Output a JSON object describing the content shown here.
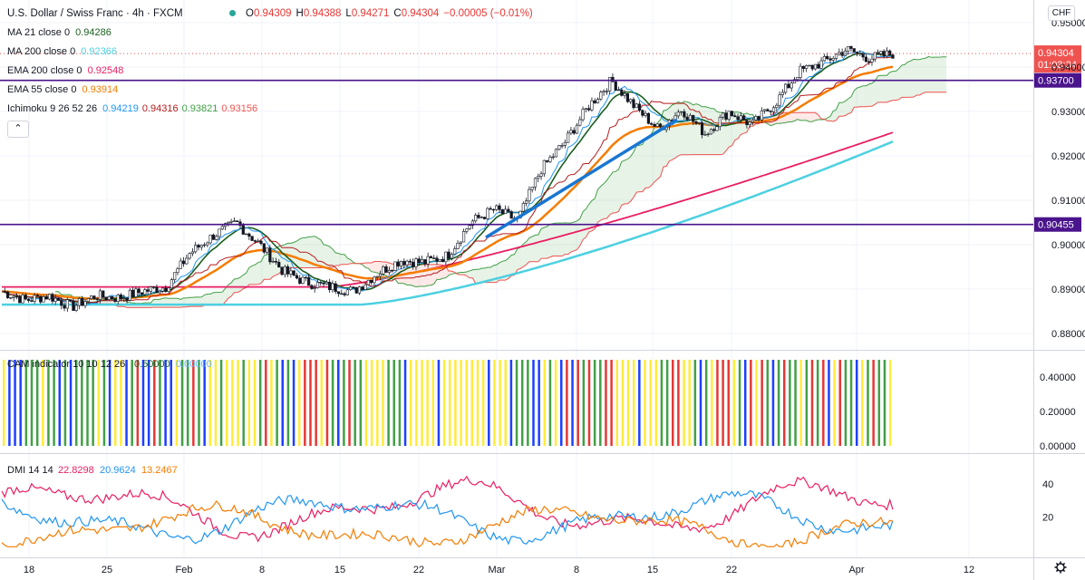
{
  "header": {
    "symbol": "U.S. Dollar / Swiss Franc · 4h · FXCM",
    "ohlc": [
      {
        "k": "O",
        "v": "0.94309"
      },
      {
        "k": "H",
        "v": "0.94388"
      },
      {
        "k": "L",
        "v": "0.94271"
      },
      {
        "k": "C",
        "v": "0.94304"
      }
    ],
    "change": "−0.00005 (−0.01%)",
    "currency_button": "CHF",
    "collapse_icon": "chevron-up-icon"
  },
  "indicators": [
    {
      "label": "MA 21 close 0",
      "values": [
        "0.94286"
      ],
      "colors": [
        "#1b5e20"
      ]
    },
    {
      "label": "MA 200 close 0",
      "values": [
        "0.92366"
      ],
      "colors": [
        "#4dd0e1"
      ]
    },
    {
      "label": "EMA 200 close 0",
      "values": [
        "0.92548"
      ],
      "colors": [
        "#e91e63"
      ]
    },
    {
      "label": "EMA 55 close 0",
      "values": [
        "0.93914"
      ],
      "colors": [
        "#f57c00"
      ]
    },
    {
      "label": "Ichimoku 9 26 52 26",
      "values": [
        "0.94219",
        "0.94316",
        "0.93821",
        "0.93156"
      ],
      "colors": [
        "#2196f3",
        "#b71c1c",
        "#43a047",
        "#ef5350"
      ]
    }
  ],
  "price_axis": {
    "labels": [
      "0.95000",
      "0.94000",
      "0.93000",
      "0.92000",
      "0.91000",
      "0.90000",
      "0.89000",
      "0.88000"
    ],
    "current_price": "0.94304",
    "countdown": "01:03:34",
    "levels": [
      "0.93700",
      "0.90455"
    ]
  },
  "time_axis": {
    "labels": [
      "18",
      "25",
      "Feb",
      "8",
      "15",
      "22",
      "Mar",
      "8",
      "15",
      "22",
      "Apr",
      "12"
    ],
    "settings_icon": "gear-icon"
  },
  "cam_panel": {
    "title": "CAM indicator 10 10 12 26",
    "values": [
      "0.50000",
      "0.00000"
    ],
    "value_colors": [
      "#1b5e20",
      "#64b5f6"
    ],
    "axis_labels": [
      "0.40000",
      "0.20000",
      "0.00000"
    ]
  },
  "dmi_panel": {
    "title": "DMI 14 14",
    "values": [
      "22.8298",
      "20.9624",
      "13.2467"
    ],
    "value_colors": [
      "#e91e63",
      "#2196f3",
      "#f57c00"
    ],
    "axis_labels": [
      "40",
      "20"
    ]
  },
  "chart_data": [
    {
      "type": "candlestick",
      "title": "U.S. Dollar / Swiss Franc · 4h · FXCM",
      "x": [
        "18",
        "25",
        "Feb",
        "8",
        "15",
        "22",
        "Mar",
        "8",
        "15",
        "22",
        "Apr",
        "12"
      ],
      "ylim": [
        0.875,
        0.952
      ],
      "y_ticks": [
        0.88,
        0.89,
        0.9,
        0.91,
        0.92,
        0.93,
        0.94,
        0.95
      ],
      "close_path": [
        [
          0.8895,
          0.8875,
          0.8885,
          0.886,
          0.8885,
          0.888,
          0.8895,
          0.8905,
          0.898,
          0.902,
          0.905,
          0.9,
          0.894,
          0.8915,
          0.8905,
          0.8895,
          0.8935,
          0.8965,
          0.896,
          0.8975,
          0.905,
          0.908,
          0.9055,
          0.917,
          0.923,
          0.931,
          0.937,
          0.931,
          0.926,
          0.9305,
          0.925,
          0.93,
          0.927,
          0.932,
          0.939,
          0.941,
          0.944,
          0.942,
          0.943
        ]
      ],
      "series": [
        {
          "name": "MA 21 close 0",
          "last": 0.94286
        },
        {
          "name": "MA 200 close 0",
          "last": 0.92366
        },
        {
          "name": "EMA 200 close 0",
          "last": 0.92548
        },
        {
          "name": "EMA 55 close 0",
          "last": 0.93914
        },
        {
          "name": "Ichimoku 9 26 52 26",
          "last": [
            0.94219,
            0.94316,
            0.93821,
            0.93156
          ]
        }
      ],
      "horizontal_levels": [
        0.937,
        0.90455
      ],
      "current_price": 0.94304
    },
    {
      "type": "bar",
      "title": "CAM indicator 10 10 12 26",
      "ylim": [
        0,
        0.5
      ],
      "y_ticks": [
        0,
        0.2,
        0.4
      ],
      "value": 0.5,
      "colors": [
        "#43a047",
        "#1e40ff",
        "#ffeb3b",
        "#e53935"
      ]
    },
    {
      "type": "line",
      "title": "DMI 14 14",
      "ylim": [
        0,
        60
      ],
      "y_ticks": [
        20,
        40
      ],
      "series": [
        {
          "name": "",
          "last": 22.8298,
          "color": "#e91e63"
        },
        {
          "name": "",
          "last": 20.9624,
          "color": "#2196f3"
        },
        {
          "name": "",
          "last": 13.2467,
          "color": "#f57c00"
        }
      ]
    }
  ]
}
